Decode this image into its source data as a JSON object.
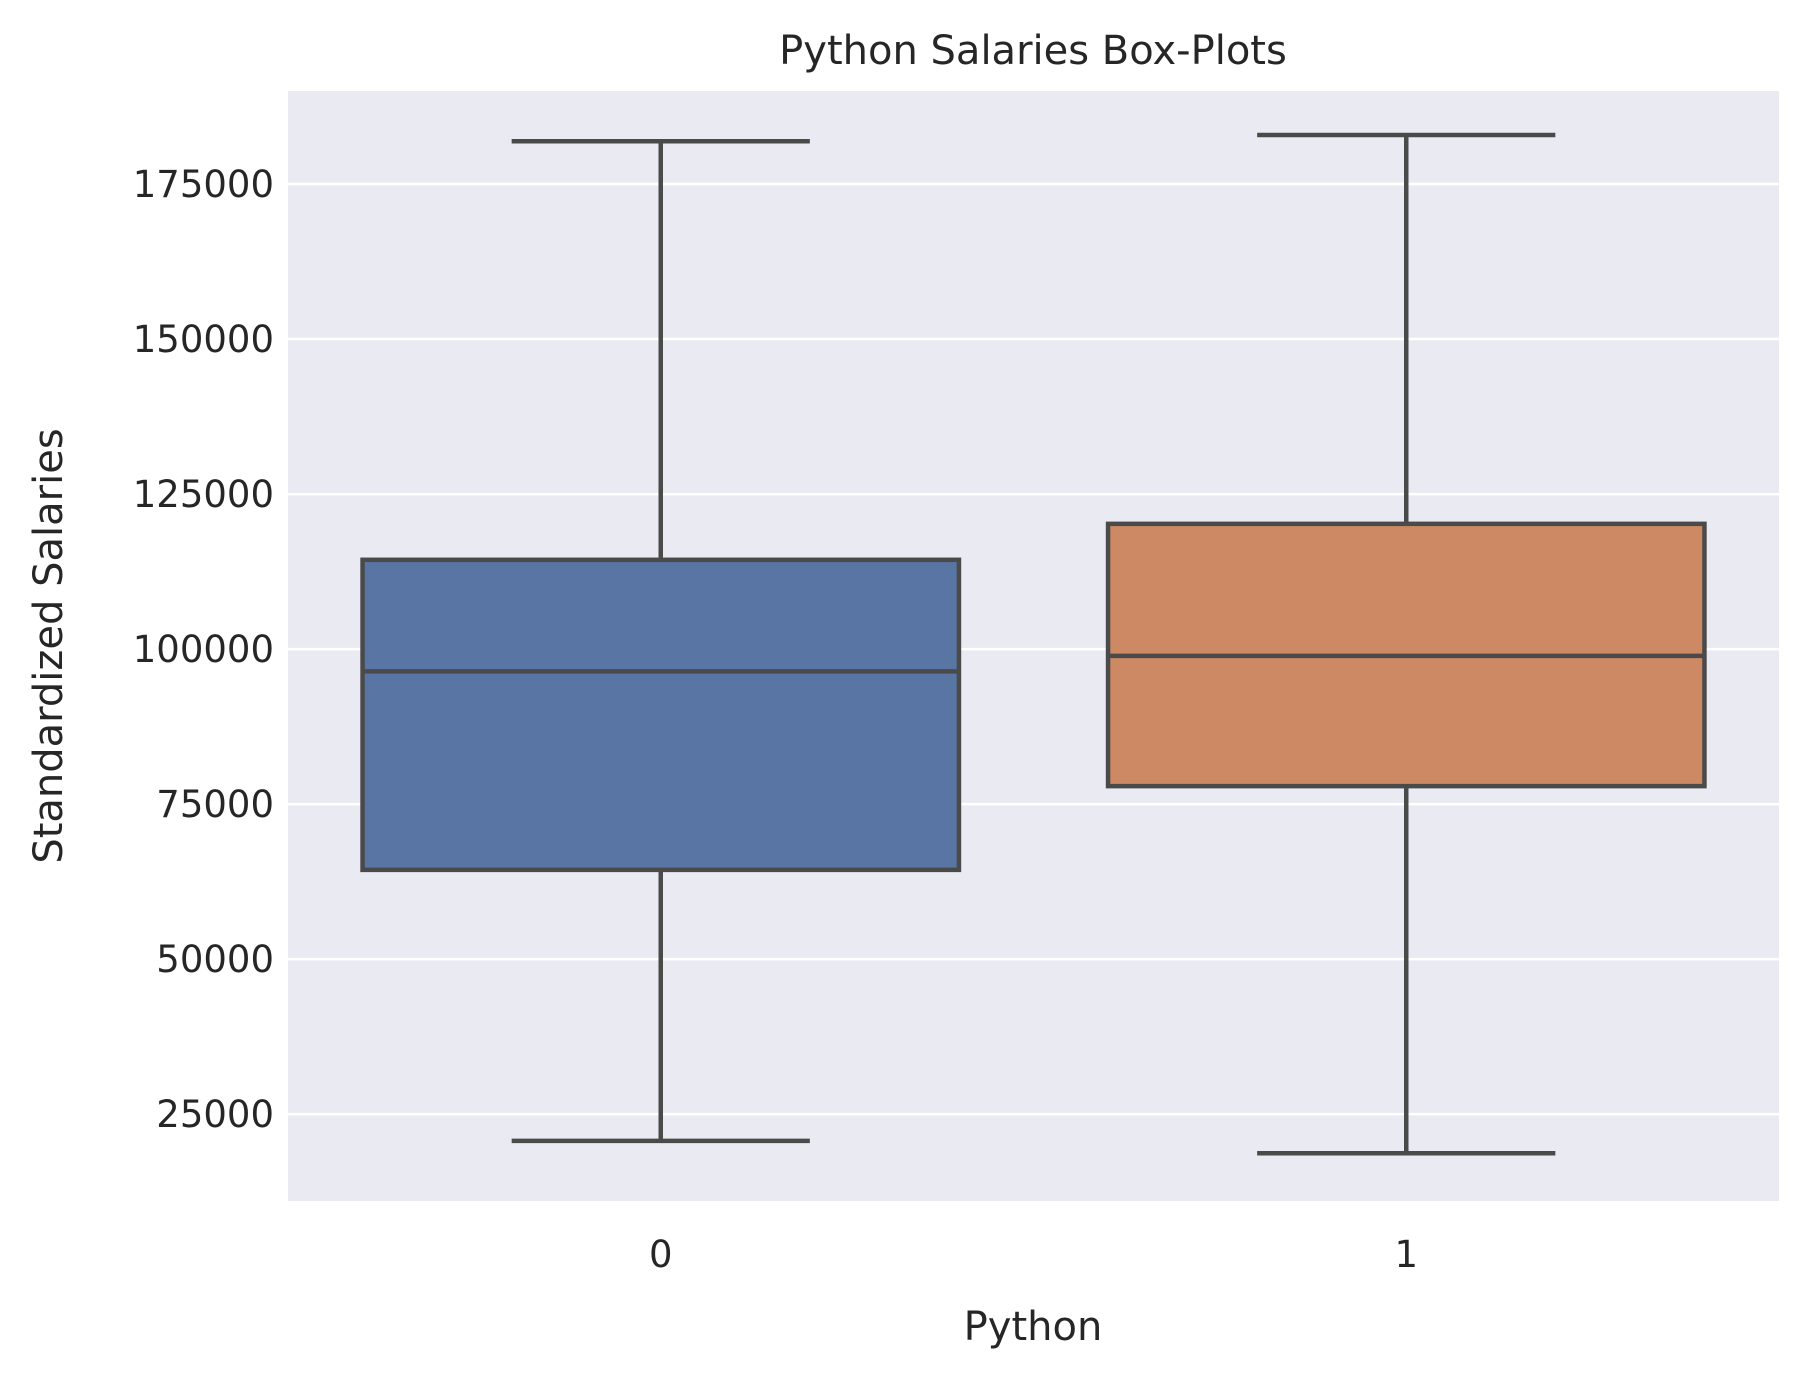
{
  "chart_data": {
    "type": "box",
    "title": "Python Salaries Box-Plots",
    "xlabel": "Python",
    "ylabel": "Standardized Salaries",
    "categories": [
      "0",
      "1"
    ],
    "yticks": [
      25000,
      50000,
      75000,
      100000,
      125000,
      150000,
      175000
    ],
    "ylim": [
      11000,
      190000
    ],
    "grid": true,
    "boxes": [
      {
        "category": "0",
        "whisker_low": 20700,
        "q1": 64400,
        "median": 96400,
        "q3": 114400,
        "whisker_high": 181900,
        "color": "#5975a4"
      },
      {
        "category": "1",
        "whisker_low": 18700,
        "q1": 77900,
        "median": 98900,
        "q3": 120200,
        "whisker_high": 182900,
        "color": "#cc8963"
      }
    ]
  },
  "colors": {
    "plot_background": "#eaeaf2",
    "grid": "#ffffff",
    "box_line": "#4a4a4a",
    "text": "#262626"
  }
}
